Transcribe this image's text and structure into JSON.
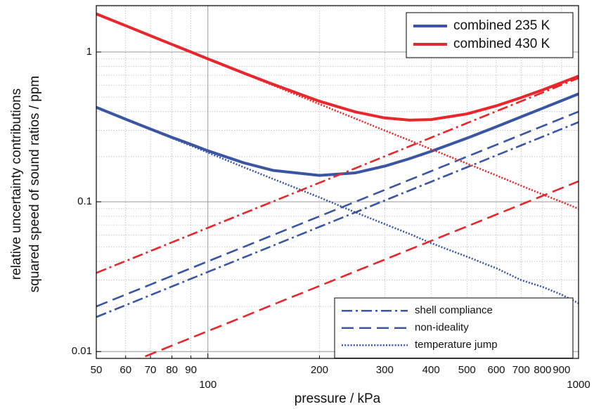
{
  "chart_data": {
    "type": "line",
    "x_label": "pressure / kPa",
    "y_label": [
      "relative uncertainty contributions",
      "squared speed of sound ratios / ppm"
    ],
    "xlog": true,
    "ylog": true,
    "xlim": [
      50,
      1000
    ],
    "ylim": [
      0.009,
      2.04
    ],
    "xticks": [
      50,
      60,
      70,
      80,
      90,
      100,
      200,
      300,
      400,
      500,
      600,
      700,
      800,
      900,
      1000
    ],
    "yticks": [
      0.01,
      0.1,
      1
    ],
    "yminorticks": [
      0.02,
      0.03,
      0.04,
      0.05,
      0.06,
      0.07,
      0.08,
      0.09,
      0.2,
      0.3,
      0.4,
      0.5,
      0.6,
      0.7,
      0.8,
      0.9,
      2
    ],
    "grid": true,
    "x": [
      50,
      60,
      70,
      80,
      90,
      100,
      125,
      150,
      200,
      250,
      300,
      350,
      400,
      500,
      600,
      700,
      800,
      900,
      1000
    ],
    "series": [
      {
        "name": "combined 235 K",
        "color": "#3a55a4",
        "style": "solid",
        "legend": "upper right",
        "values": [
          0.427,
          0.356,
          0.306,
          0.269,
          0.242,
          0.219,
          0.182,
          0.162,
          0.15,
          0.156,
          0.173,
          0.194,
          0.217,
          0.266,
          0.317,
          0.369,
          0.421,
          0.473,
          0.525
        ]
      },
      {
        "name": "combined 430 K",
        "color": "#e8262b",
        "style": "solid",
        "legend": "upper right",
        "values": [
          1.796,
          1.498,
          1.284,
          1.124,
          1.0,
          0.9,
          0.723,
          0.608,
          0.469,
          0.398,
          0.363,
          0.351,
          0.354,
          0.386,
          0.437,
          0.496,
          0.558,
          0.624,
          0.69
        ]
      },
      {
        "name": "shell compliance",
        "color": "#3a55a4",
        "style": "dashdot",
        "legend": "lower right",
        "values": [
          0.017,
          0.0204,
          0.0238,
          0.0272,
          0.0306,
          0.034,
          0.0425,
          0.051,
          0.068,
          0.085,
          0.102,
          0.119,
          0.136,
          0.17,
          0.204,
          0.238,
          0.272,
          0.306,
          0.34
        ]
      },
      {
        "name": "non-ideality",
        "color": "#3a55a4",
        "style": "dash",
        "legend": "lower right",
        "values": [
          0.02,
          0.024,
          0.028,
          0.032,
          0.036,
          0.04,
          0.05,
          0.06,
          0.08,
          0.1,
          0.12,
          0.14,
          0.16,
          0.2,
          0.24,
          0.28,
          0.32,
          0.36,
          0.4
        ]
      },
      {
        "name": "temperature jump",
        "color": "#3a55a4",
        "style": "dot",
        "legend": "lower right",
        "values": [
          0.426,
          0.355,
          0.304,
          0.266,
          0.237,
          0.213,
          0.17,
          0.142,
          0.107,
          0.085,
          0.071,
          0.061,
          0.053,
          0.043,
          0.036,
          0.03,
          0.027,
          0.024,
          0.021
        ]
      },
      {
        "color": "#e8262b",
        "style": "dashdot",
        "values": [
          0.0335,
          0.0402,
          0.0469,
          0.0536,
          0.0603,
          0.067,
          0.0838,
          0.1005,
          0.134,
          0.1675,
          0.201,
          0.2345,
          0.268,
          0.335,
          0.402,
          0.469,
          0.536,
          0.603,
          0.67
        ]
      },
      {
        "color": "#e8262b",
        "style": "dash",
        "values": [
          0.00685,
          0.00822,
          0.00959,
          0.01096,
          0.01233,
          0.0137,
          0.0171,
          0.0206,
          0.0274,
          0.0343,
          0.0411,
          0.048,
          0.0548,
          0.0685,
          0.0822,
          0.0959,
          0.1096,
          0.1233,
          0.137
        ]
      },
      {
        "color": "#e8262b",
        "style": "dot",
        "values": [
          1.796,
          1.497,
          1.283,
          1.123,
          0.998,
          0.898,
          0.718,
          0.599,
          0.449,
          0.359,
          0.299,
          0.257,
          0.2245,
          0.18,
          0.15,
          0.128,
          0.112,
          0.0998,
          0.0898
        ]
      }
    ]
  }
}
